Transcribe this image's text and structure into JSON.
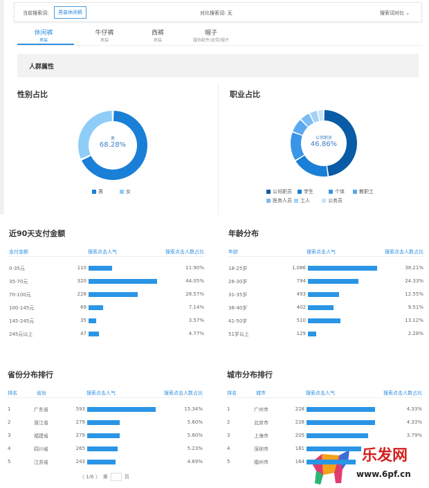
{
  "search": {
    "current_label": "当前搜索词:",
    "keyword": "男装休闲裤",
    "compare_label": "对比搜索词: 无",
    "compare_button": "搜索词对比"
  },
  "tabs": [
    {
      "label": "休闲裤",
      "sub": "男装",
      "active": true
    },
    {
      "label": "牛仔裤",
      "sub": "男装"
    },
    {
      "label": "西裤",
      "sub": "男装"
    },
    {
      "label": "帽子",
      "sub": "服饰配件/皮带/帽子"
    }
  ],
  "section_title": "人群属性",
  "gender": {
    "title": "性别占比",
    "center_label": "男",
    "center_value": "68.28%",
    "slices": [
      {
        "name": "男",
        "value": 68.28,
        "color": "#1a7fd6"
      },
      {
        "name": "女",
        "value": 31.72,
        "color": "#8ecdf7"
      }
    ]
  },
  "occupation": {
    "title": "职业占比",
    "center_label": "公司职员",
    "center_value": "46.86%",
    "slices": [
      {
        "name": "公司职员",
        "value": 46.86,
        "color": "#0a5ba6"
      },
      {
        "name": "学生",
        "value": 18,
        "color": "#1a7fd6"
      },
      {
        "name": "个体",
        "value": 14,
        "color": "#3a95e6"
      },
      {
        "name": "教职工",
        "value": 7,
        "color": "#5aa8ee"
      },
      {
        "name": "医务人员",
        "value": 5,
        "color": "#7bbcf2"
      },
      {
        "name": "工人",
        "value": 4,
        "color": "#a4d3f7"
      },
      {
        "name": "公务员",
        "value": 3,
        "color": "#c6e4fa"
      }
    ]
  },
  "payment": {
    "title": "近90天支付金额",
    "headers": [
      "支付金额",
      "搜索点击人气",
      "搜索点击人数占比"
    ],
    "max": 320,
    "rows": [
      {
        "label": "0-35元",
        "value": 110,
        "pct": "11.90%"
      },
      {
        "label": "35-70元",
        "value": 320,
        "pct": "44.05%"
      },
      {
        "label": "70-100元",
        "value": 228,
        "pct": "28.57%"
      },
      {
        "label": "100-145元",
        "value": 69,
        "pct": "7.14%"
      },
      {
        "label": "145-245元",
        "value": 35,
        "pct": "3.57%"
      },
      {
        "label": "245元以上",
        "value": 47,
        "pct": "4.77%"
      }
    ]
  },
  "age": {
    "title": "年龄分布",
    "headers": [
      "年龄",
      "搜索点击人气",
      "搜索点击人数占比"
    ],
    "max": 1086,
    "rows": [
      {
        "label": "18-25岁",
        "value": 1086,
        "display": "1,086",
        "pct": "38.21%"
      },
      {
        "label": "26-30岁",
        "value": 794,
        "pct": "24.33%"
      },
      {
        "label": "31-35岁",
        "value": 493,
        "pct": "12.55%"
      },
      {
        "label": "36-40岁",
        "value": 402,
        "pct": "9.51%"
      },
      {
        "label": "41-50岁",
        "value": 510,
        "pct": "13.12%"
      },
      {
        "label": "51岁以上",
        "value": 129,
        "pct": "2.28%"
      }
    ]
  },
  "province": {
    "title": "省份分布排行",
    "headers": [
      "排名",
      "省份",
      "搜索点击人气",
      "搜索点击人数占比"
    ],
    "max": 593,
    "rows": [
      {
        "rank": "1",
        "label": "广东省",
        "value": 593,
        "pct": "15.34%"
      },
      {
        "rank": "2",
        "label": "浙江省",
        "value": 279,
        "pct": "5.60%"
      },
      {
        "rank": "3",
        "label": "福建省",
        "value": 279,
        "pct": "5.60%"
      },
      {
        "rank": "4",
        "label": "四川省",
        "value": 265,
        "pct": "5.23%"
      },
      {
        "rank": "5",
        "label": "江苏省",
        "value": 243,
        "pct": "4.69%"
      }
    ],
    "pager": {
      "text": "〈 1/6 〉",
      "pre": "第",
      "post": "页"
    }
  },
  "city": {
    "title": "城市分布排行",
    "headers": [
      "排名",
      "城市",
      "搜索点击人气",
      "搜索点击人数占比"
    ],
    "max": 228,
    "rows": [
      {
        "rank": "1",
        "label": "广州市",
        "value": 228,
        "pct": "4.33%"
      },
      {
        "rank": "2",
        "label": "北京市",
        "value": 228,
        "pct": "4.33%"
      },
      {
        "rank": "3",
        "label": "上海市",
        "value": 205,
        "pct": "3.79%"
      },
      {
        "rank": "4",
        "label": "深圳市",
        "value": 181,
        "pct": ""
      },
      {
        "rank": "5",
        "label": "福州市",
        "value": 164,
        "pct": ""
      }
    ]
  },
  "watermark": {
    "name": "乐发网",
    "url": "www.6pf.cn"
  }
}
